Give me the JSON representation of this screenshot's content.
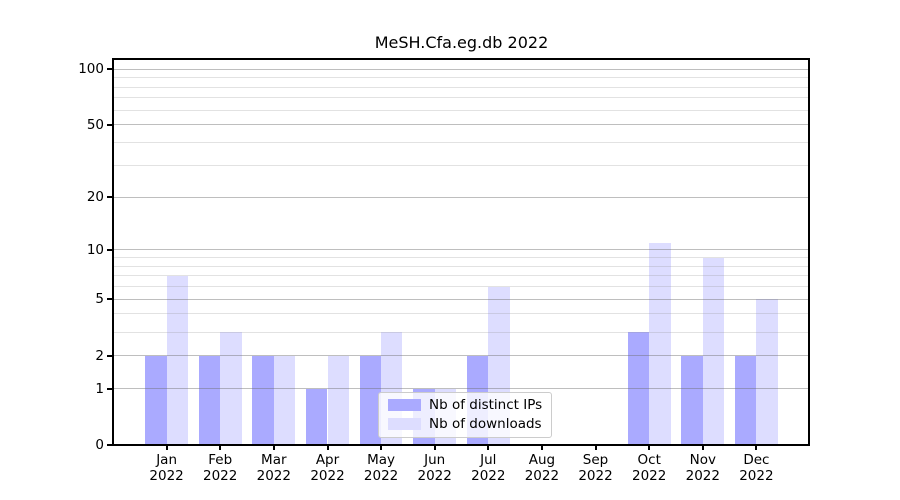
{
  "title": "MeSH.Cfa.eg.db 2022",
  "chart_data": {
    "type": "bar",
    "title": "MeSH.Cfa.eg.db 2022",
    "categories": [
      "Jan 2022",
      "Feb 2022",
      "Mar 2022",
      "Apr 2022",
      "May 2022",
      "Jun 2022",
      "Jul 2022",
      "Aug 2022",
      "Sep 2022",
      "Oct 2022",
      "Nov 2022",
      "Dec 2022"
    ],
    "series": [
      {
        "name": "Nb of distinct IPs",
        "color": "#aaaaff",
        "values": [
          2,
          2,
          2,
          1,
          2,
          1,
          2,
          0,
          0,
          3,
          2,
          2
        ]
      },
      {
        "name": "Nb of downloads",
        "color": "#ddddff",
        "values": [
          7,
          3,
          2,
          2,
          3,
          1,
          6,
          0,
          0,
          11,
          9,
          5
        ]
      }
    ],
    "xlabel": "",
    "ylabel": "",
    "yscale": "log1p",
    "ylim": [
      0,
      112
    ],
    "y_major_ticks": [
      0,
      1,
      2,
      5,
      10,
      20,
      50,
      100
    ],
    "y_minor_ticks": [
      3,
      4,
      6,
      7,
      8,
      9,
      30,
      40,
      60,
      70,
      80,
      90
    ],
    "grid": true,
    "grid_above_bars": true,
    "legend_position": "lower center",
    "background_color": "#ffffff",
    "major_grid_color": "#c6c6c6",
    "minor_grid_color": "#e6e6e6"
  }
}
